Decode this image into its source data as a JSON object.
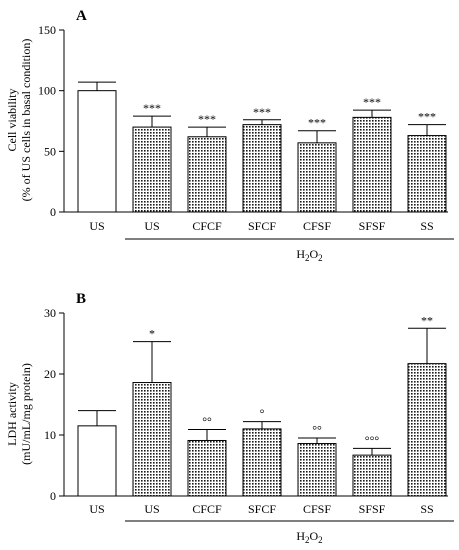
{
  "chart_data": [
    {
      "type": "bar",
      "panel": "A",
      "ylabel_line1": "Cell viability",
      "ylabel_line2": "(% of US cells in basal condition)",
      "ylim": [
        0,
        150
      ],
      "yticks": [
        0,
        50,
        100,
        150
      ],
      "categories": [
        "US",
        "US",
        "CFCF",
        "SFCF",
        "CFSF",
        "SFSF",
        "SS"
      ],
      "values": [
        100,
        70,
        62,
        72,
        57,
        78,
        63
      ],
      "errors": [
        7,
        9,
        8,
        4,
        10,
        6,
        9
      ],
      "fills": [
        "open",
        "dotted",
        "dotted",
        "dotted",
        "dotted",
        "dotted",
        "dotted"
      ],
      "annotations": [
        "",
        "***",
        "***",
        "***",
        "***",
        "***",
        "***"
      ],
      "group": {
        "label": "H",
        "label_sub": "2",
        "label_tail": "O",
        "label_sub2": "2",
        "from_index": 1,
        "to_index": 6
      }
    },
    {
      "type": "bar",
      "panel": "B",
      "ylabel_line1": "LDH activity",
      "ylabel_line2": "(mU/mL/mg protein)",
      "ylim": [
        0,
        30
      ],
      "yticks": [
        0,
        10,
        20,
        30
      ],
      "categories": [
        "US",
        "US",
        "CFCF",
        "SFCF",
        "CFSF",
        "SFSF",
        "SS"
      ],
      "values": [
        11.5,
        18.6,
        9.1,
        11.0,
        8.6,
        6.7,
        21.7
      ],
      "errors": [
        2.5,
        6.7,
        1.8,
        1.2,
        0.9,
        1.1,
        5.8
      ],
      "fills": [
        "open",
        "dotted",
        "dotted",
        "dotted",
        "dotted",
        "dotted",
        "dotted"
      ],
      "annotations": [
        "",
        "*",
        "°°",
        "°",
        "°°",
        "°°°",
        "**"
      ],
      "group": {
        "label": "H",
        "label_sub": "2",
        "label_tail": "O",
        "label_sub2": "2",
        "from_index": 1,
        "to_index": 6
      }
    }
  ],
  "colors": {
    "axis": "#000000",
    "bar_open": "#ffffff",
    "bar_pattern_bg": "#ffffff",
    "bar_pattern_dot": "#1a1a1a"
  }
}
